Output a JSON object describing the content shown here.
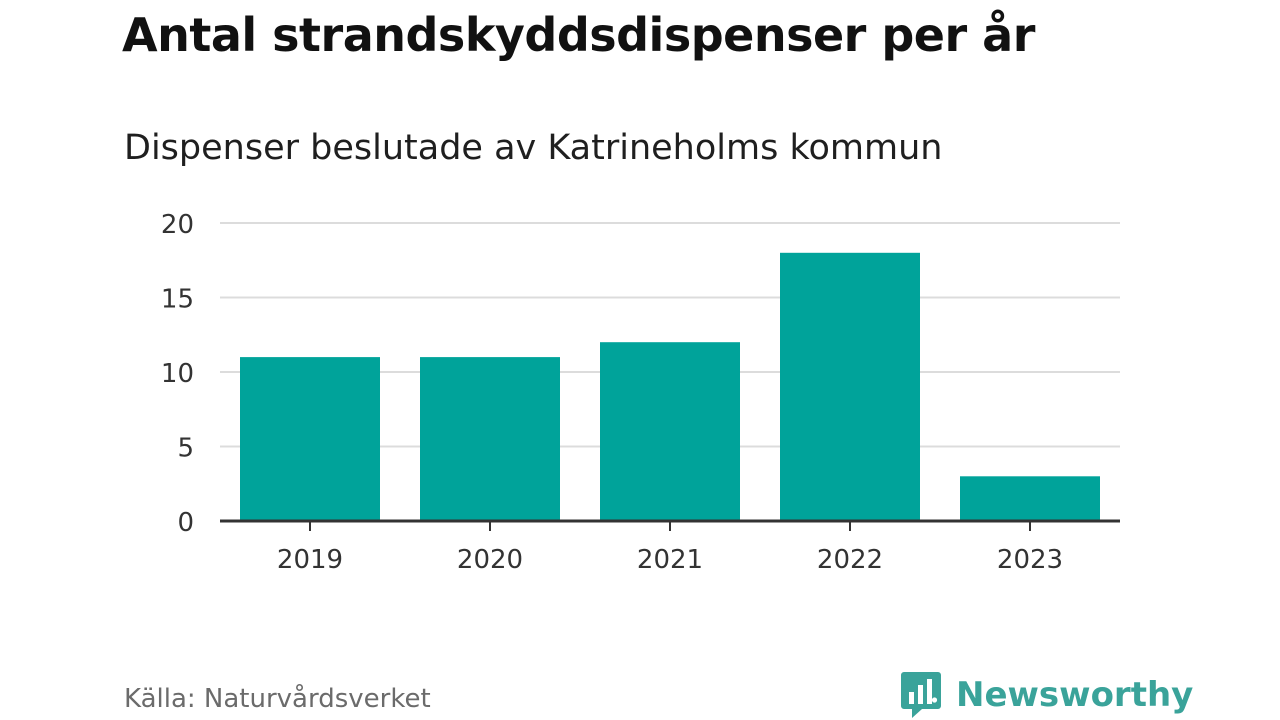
{
  "chart_data": {
    "type": "bar",
    "title": "Antal strandskyddsdispenser per år",
    "subtitle": "Dispenser beslutade av Katrineholms kommun",
    "categories": [
      "2019",
      "2020",
      "2021",
      "2022",
      "2023"
    ],
    "values": [
      11,
      11,
      12,
      18,
      3
    ],
    "xlabel": "",
    "ylabel": "",
    "ylim": [
      0,
      20
    ],
    "yticks": [
      0,
      5,
      10,
      15,
      20
    ],
    "grid": true,
    "bar_color": "#00a39a"
  },
  "footer": {
    "source": "Källa: Naturvårdsverket",
    "brand": "Newsworthy",
    "brand_icon": "newsworthy-logo-icon",
    "brand_color": "#3aa39a"
  }
}
